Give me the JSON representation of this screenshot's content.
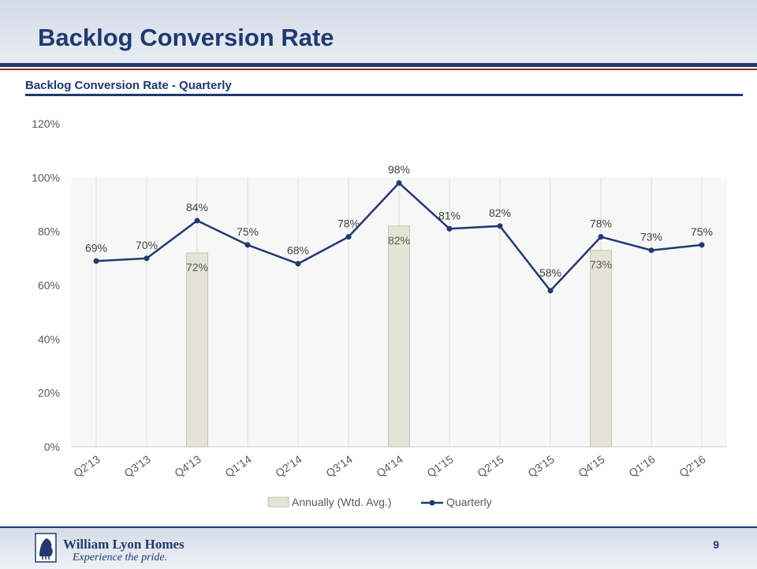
{
  "slide": {
    "title": "Backlog Conversion Rate",
    "chart_heading": "Backlog Conversion Rate - Quarterly",
    "page_number": "9"
  },
  "branding": {
    "company": "William Lyon Homes",
    "tagline": "Experience the pride."
  },
  "colors": {
    "navy": "#1f3a6e",
    "bar_fill": "#e3e3d6",
    "bar_stroke": "#c6c6b2",
    "line": "#1f3a6e"
  },
  "chart_data": {
    "type": "bar",
    "categories": [
      "Q2'13",
      "Q3'13",
      "Q4'13",
      "Q1'14",
      "Q2'14",
      "Q3'14",
      "Q4'14",
      "Q1'15",
      "Q2'15",
      "Q3'15",
      "Q4'15",
      "Q1'16",
      "Q2'16"
    ],
    "ylim": [
      0,
      120
    ],
    "yticks": [
      "0%",
      "20%",
      "40%",
      "60%",
      "80%",
      "100%",
      "120%"
    ],
    "ytick_values": [
      0,
      20,
      40,
      60,
      80,
      100,
      120
    ],
    "grid": "vertical category lines",
    "legend_position": "bottom",
    "series": [
      {
        "name": "Annually (Wtd. Avg.)",
        "type": "bar",
        "values": [
          null,
          null,
          72,
          null,
          null,
          null,
          82,
          null,
          null,
          null,
          73,
          null,
          null
        ],
        "labels": [
          null,
          null,
          "72%",
          null,
          null,
          null,
          "82%",
          null,
          null,
          null,
          "73%",
          null,
          null
        ]
      },
      {
        "name": "Quarterly",
        "type": "line",
        "values": [
          69,
          70,
          84,
          75,
          68,
          78,
          98,
          81,
          82,
          58,
          78,
          73,
          75
        ],
        "labels": [
          "69%",
          "70%",
          "84%",
          "75%",
          "68%",
          "78%",
          "98%",
          "81%",
          "82%",
          "58%",
          "78%",
          "73%",
          "75%"
        ]
      }
    ]
  }
}
